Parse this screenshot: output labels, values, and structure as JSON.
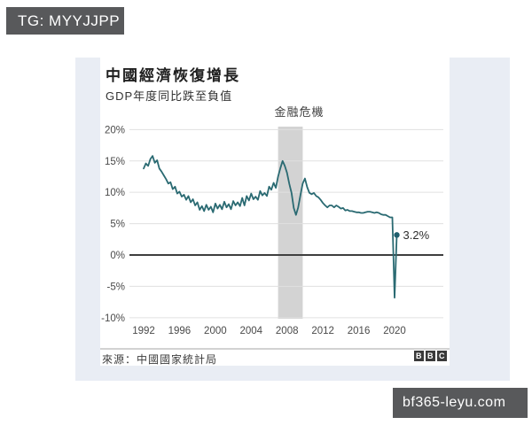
{
  "page": {
    "watermark_top": "TG: MYYJJPP",
    "watermark_bottom": "bf365-leyu.com",
    "badge_bg": "#58595b"
  },
  "chart_data": {
    "type": "line",
    "title": "中國經濟恢復增長",
    "subtitle": "GDP年度同比跌至負值",
    "source": "來源：中國國家統計局",
    "logo_letters": [
      "B",
      "B",
      "C"
    ],
    "annotation": {
      "label": "金融危機",
      "band_from": 2007.0,
      "band_to": 2009.75
    },
    "last_point_label": "3.2%",
    "x_start_year": 1992,
    "points_per_year": 4,
    "x_end": 2020.25,
    "xticks": [
      1992,
      1996,
      2000,
      2004,
      2008,
      2012,
      2016,
      2020
    ],
    "yticks": [
      20,
      15,
      10,
      5,
      0,
      -5,
      -10
    ],
    "ytick_labels": [
      "20%",
      "15%",
      "10%",
      "5%",
      "0%",
      "-5%",
      "-10%"
    ],
    "ylim": [
      -10,
      20
    ],
    "grid": true,
    "legend": "none",
    "series": [
      {
        "name": "GDP YoY growth (%, quarterly)",
        "values": [
          13.8,
          14.6,
          14.2,
          15.3,
          15.8,
          14.7,
          15.1,
          13.8,
          13.3,
          12.7,
          12.1,
          11.4,
          11.6,
          10.5,
          10.9,
          9.8,
          10.1,
          9.3,
          9.6,
          8.8,
          9.4,
          8.4,
          8.9,
          7.9,
          8.4,
          7.2,
          7.8,
          7.0,
          8.0,
          7.2,
          7.7,
          6.8,
          8.2,
          7.4,
          8.0,
          7.3,
          8.5,
          7.6,
          8.1,
          7.3,
          8.6,
          7.9,
          8.4,
          7.8,
          9.1,
          7.9,
          9.4,
          8.7,
          9.8,
          8.9,
          9.3,
          8.8,
          10.2,
          9.5,
          9.9,
          9.4,
          10.9,
          10.4,
          11.5,
          10.7,
          12.5,
          13.8,
          15.0,
          14.2,
          13.1,
          11.4,
          9.9,
          7.5,
          6.4,
          7.6,
          9.6,
          11.4,
          12.2,
          10.8,
          9.9,
          9.7,
          9.9,
          9.4,
          9.2,
          8.8,
          8.3,
          7.9,
          7.6,
          7.9,
          7.9,
          7.6,
          7.9,
          7.7,
          7.4,
          7.5,
          7.1,
          7.2,
          7.0,
          7.0,
          6.9,
          6.8,
          6.8,
          6.7,
          6.7,
          6.8,
          6.9,
          6.9,
          6.8,
          6.7,
          6.8,
          6.7,
          6.5,
          6.4,
          6.4,
          6.2,
          6.0,
          6.0,
          -6.8,
          3.2
        ]
      }
    ],
    "colors": {
      "line": "#2a6a72",
      "dot": "#1f5f6e",
      "band": "#d3d3d3",
      "grid": "#e0e0e0",
      "zero_line": "#3f3f3f",
      "axis_text": "#4a4a4a",
      "divider": "#a6a6a6",
      "logo_bg": "#3a3a3a"
    }
  }
}
